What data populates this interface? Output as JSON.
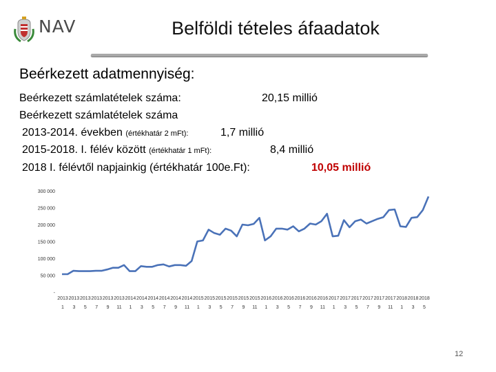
{
  "header": {
    "logo_text": "NAV",
    "title": "Belföldi tételes áfaadatok"
  },
  "content": {
    "subtitle": "Beérkezett adatmennyiség:",
    "line1_label": "Beérkezett számlatételek száma:",
    "line1_value": "20,15 millió",
    "line2_label": "Beérkezett számlatételek száma",
    "line3_label": "2013-2014. években",
    "line3_note": "(értékhatár 2 mFt):",
    "line3_value": "1,7 millió",
    "line4_label": "2015-2018. I. félév között",
    "line4_note": "(értékhatár 1 mFt):",
    "line4_value": "8,4 millió",
    "line5_label": "2018 I. félévtől napjainkig (értékhatár 100e.Ft):",
    "line5_value": "10,05 millió"
  },
  "chart_data": {
    "type": "line",
    "color": "#4a72b8",
    "ylim": [
      0,
      300000
    ],
    "yticks": [
      "-",
      "50 000",
      "100 000",
      "150 000",
      "200 000",
      "250 000",
      "300 000"
    ],
    "x_labels_top": [
      "2013",
      "2013",
      "2013",
      "2013",
      "2013",
      "2013",
      "2014",
      "2014",
      "2014",
      "2014",
      "2014",
      "2014",
      "2015",
      "2015",
      "2015",
      "2015",
      "2015",
      "2015",
      "2016",
      "2016",
      "2016",
      "2016",
      "2016",
      "2016",
      "2017",
      "2017",
      "2017",
      "2017",
      "2017",
      "2017",
      "2018",
      "2018",
      "2018"
    ],
    "x_labels_bottom": [
      "1",
      "3",
      "5",
      "7",
      "9",
      "11",
      "1",
      "3",
      "5",
      "7",
      "9",
      "11",
      "1",
      "3",
      "5",
      "7",
      "9",
      "11",
      "1",
      "3",
      "5",
      "7",
      "9",
      "11",
      "1",
      "3",
      "5",
      "7",
      "9",
      "11",
      "1",
      "3",
      "5"
    ],
    "values": [
      53000,
      53000,
      63000,
      62000,
      62000,
      62000,
      63000,
      63000,
      67000,
      72000,
      72000,
      80000,
      62000,
      62000,
      77000,
      75000,
      75000,
      80000,
      82000,
      76000,
      80000,
      80000,
      78000,
      92000,
      150000,
      153000,
      185000,
      175000,
      170000,
      188000,
      182000,
      165000,
      200000,
      198000,
      202000,
      220000,
      153000,
      165000,
      188000,
      188000,
      185000,
      195000,
      180000,
      188000,
      203000,
      200000,
      210000,
      232000,
      165000,
      167000,
      213000,
      192000,
      210000,
      215000,
      203000,
      210000,
      217000,
      222000,
      243000,
      245000,
      195000,
      193000,
      220000,
      222000,
      243000,
      283000
    ]
  },
  "footer": {
    "page_number": "12"
  }
}
